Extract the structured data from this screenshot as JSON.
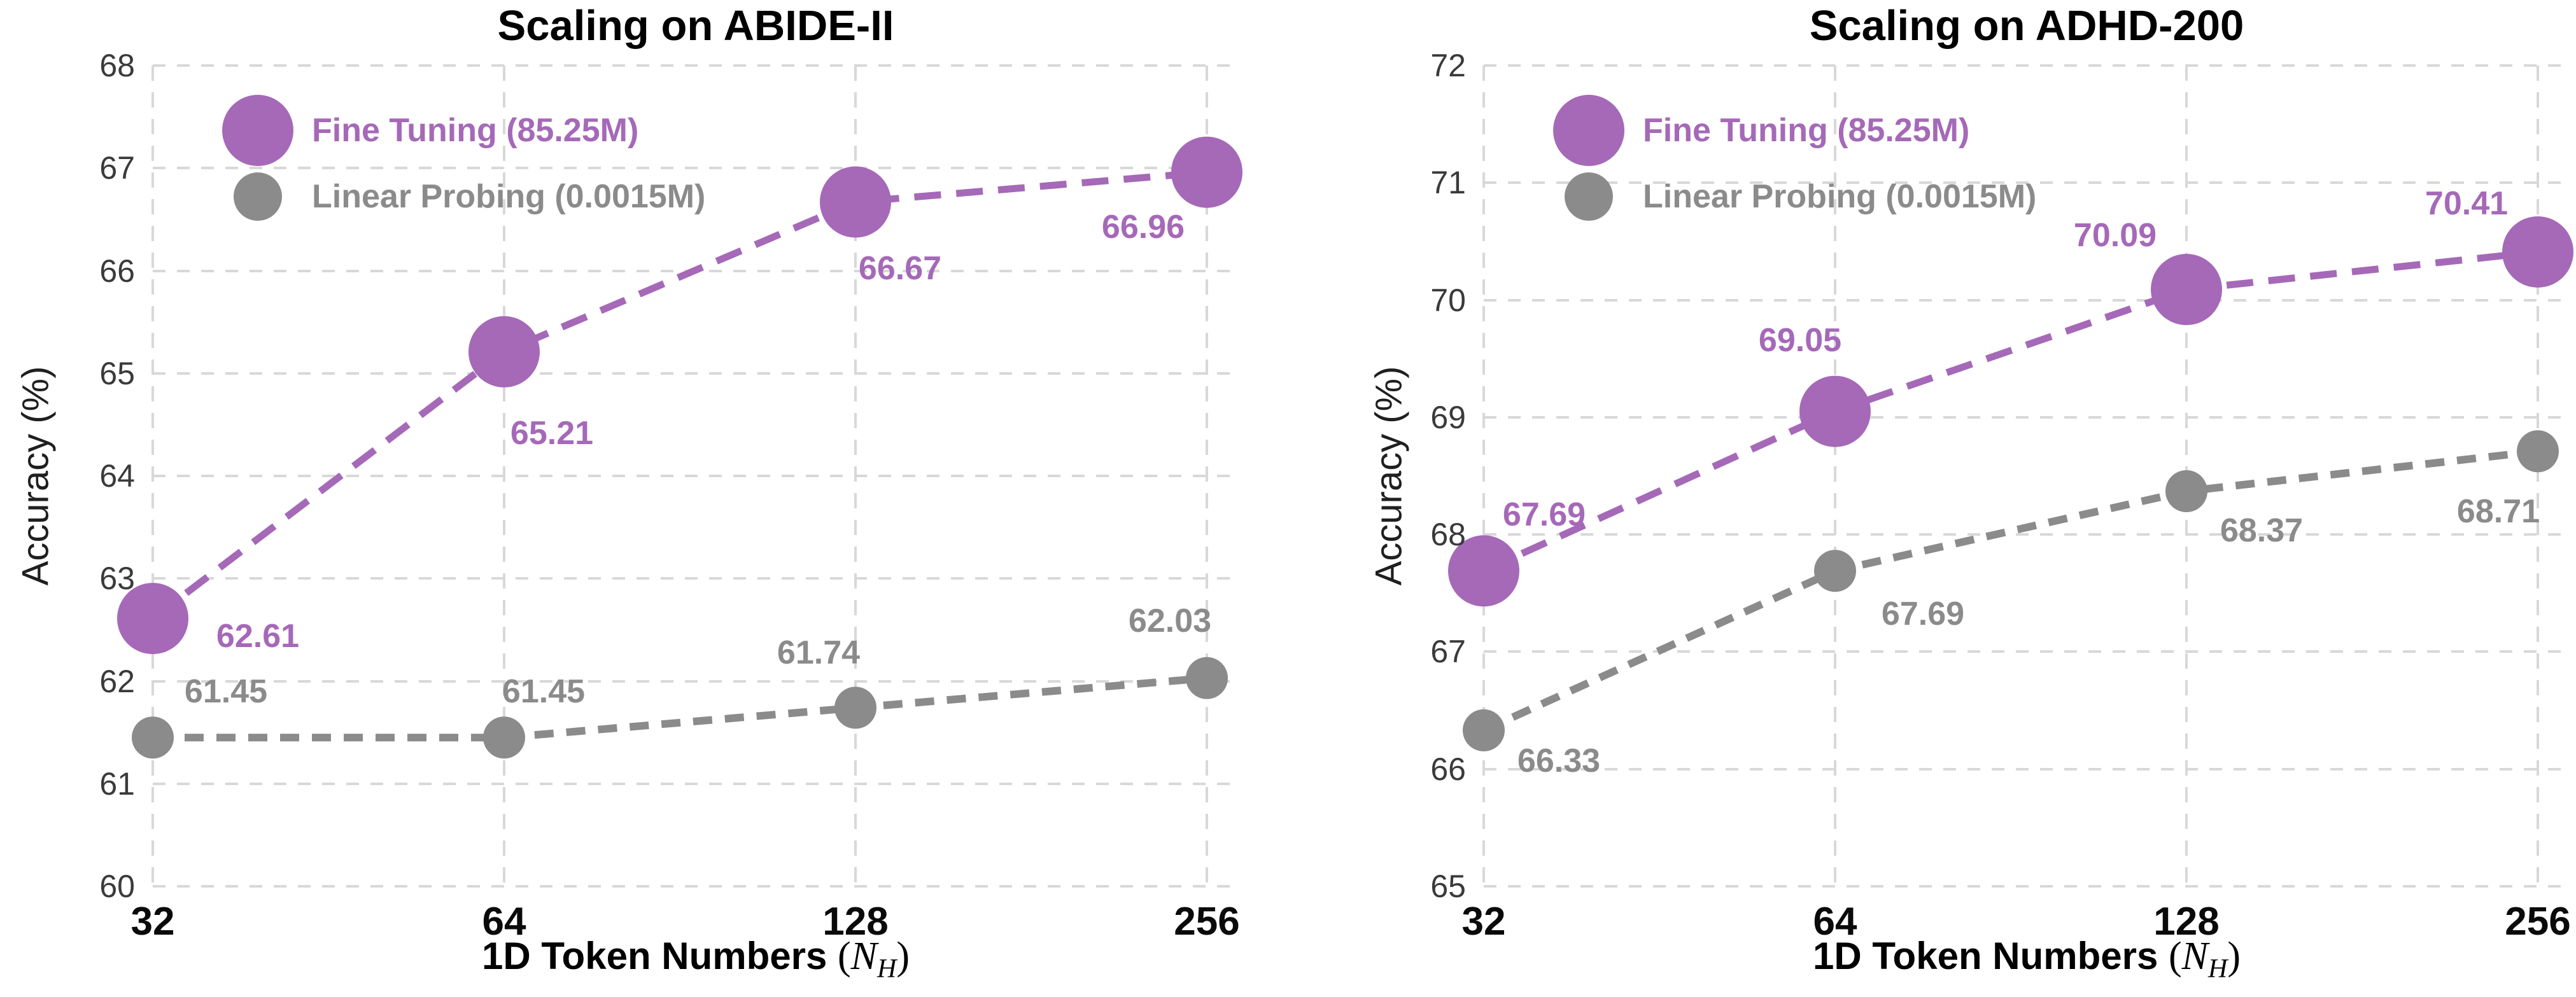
{
  "figure": {
    "background": "#ffffff"
  },
  "colors": {
    "fine_tuning": "#A569B8",
    "linear_probing": "#8B8B8B",
    "grid": "#D8D8D8",
    "ytick_text": "#3A3A3A",
    "xtick_text": "#0A0A0A",
    "title_text": "#000000"
  },
  "xlabel": {
    "prefix": "1D Token Numbers ",
    "open_paren": "(",
    "variable": "N",
    "subscript": "H",
    "close_paren": ")"
  },
  "chart_data": [
    {
      "type": "line",
      "title": "Scaling on ABIDE-II",
      "ylabel": "Accuracy (%)",
      "xlabel": "1D Token Numbers (N_H)",
      "categories": [
        "32",
        "64",
        "128",
        "256"
      ],
      "ylim": [
        60,
        68
      ],
      "yticks": [
        "60",
        "61",
        "62",
        "63",
        "64",
        "65",
        "66",
        "67",
        "68"
      ],
      "grid": true,
      "legend_position": "upper left",
      "series": [
        {
          "name": "Fine Tuning (85.25M)",
          "color_key": "fine_tuning",
          "marker_radius": 56,
          "line_width": 11,
          "dash": "42 24",
          "values": [
            62.61,
            65.21,
            66.67,
            66.96
          ],
          "point_labels": [
            {
              "text": "62.61",
              "dx": 165,
              "dy": 28
            },
            {
              "text": "65.21",
              "dx": 75,
              "dy": 128
            },
            {
              "text": "66.67",
              "dx": 70,
              "dy": 105
            },
            {
              "text": "66.96",
              "dx": -100,
              "dy": 86
            }
          ]
        },
        {
          "name": "Linear Probing (0.0015M)",
          "color_key": "linear_probing",
          "marker_radius": 33,
          "line_width": 12,
          "dash": "30 20",
          "values": [
            61.45,
            61.45,
            61.74,
            62.03
          ],
          "point_labels": [
            {
              "text": "61.45",
              "dx": 115,
              "dy": -72
            },
            {
              "text": "61.45",
              "dx": 62,
              "dy": -72
            },
            {
              "text": "61.74",
              "dx": -58,
              "dy": -86
            },
            {
              "text": "62.03",
              "dx": -58,
              "dy": -90
            }
          ]
        }
      ]
    },
    {
      "type": "line",
      "title": "Scaling on ADHD-200",
      "ylabel": "Accuracy (%)",
      "xlabel": "1D Token Numbers (N_H)",
      "categories": [
        "32",
        "64",
        "128",
        "256"
      ],
      "ylim": [
        65,
        72
      ],
      "yticks": [
        "65",
        "66",
        "67",
        "68",
        "69",
        "70",
        "71",
        "72"
      ],
      "grid": true,
      "legend_position": "upper left",
      "series": [
        {
          "name": "Fine Tuning (85.25M)",
          "color_key": "fine_tuning",
          "marker_radius": 56,
          "line_width": 11,
          "dash": "42 24",
          "values": [
            67.69,
            69.05,
            70.09,
            70.41
          ],
          "point_labels": [
            {
              "text": "67.69",
              "dx": 95,
              "dy": -88
            },
            {
              "text": "69.05",
              "dx": -55,
              "dy": -112
            },
            {
              "text": "70.09",
              "dx": -112,
              "dy": -85
            },
            {
              "text": "70.41",
              "dx": -112,
              "dy": -76
            }
          ]
        },
        {
          "name": "Linear Probing (0.0015M)",
          "color_key": "linear_probing",
          "marker_radius": 33,
          "line_width": 12,
          "dash": "30 20",
          "values": [
            66.33,
            67.69,
            68.37,
            68.71
          ],
          "point_labels": [
            {
              "text": "66.33",
              "dx": 118,
              "dy": 48
            },
            {
              "text": "67.69",
              "dx": 138,
              "dy": 68
            },
            {
              "text": "68.37",
              "dx": 118,
              "dy": 62
            },
            {
              "text": "68.71",
              "dx": -62,
              "dy": 95
            }
          ]
        }
      ]
    }
  ]
}
